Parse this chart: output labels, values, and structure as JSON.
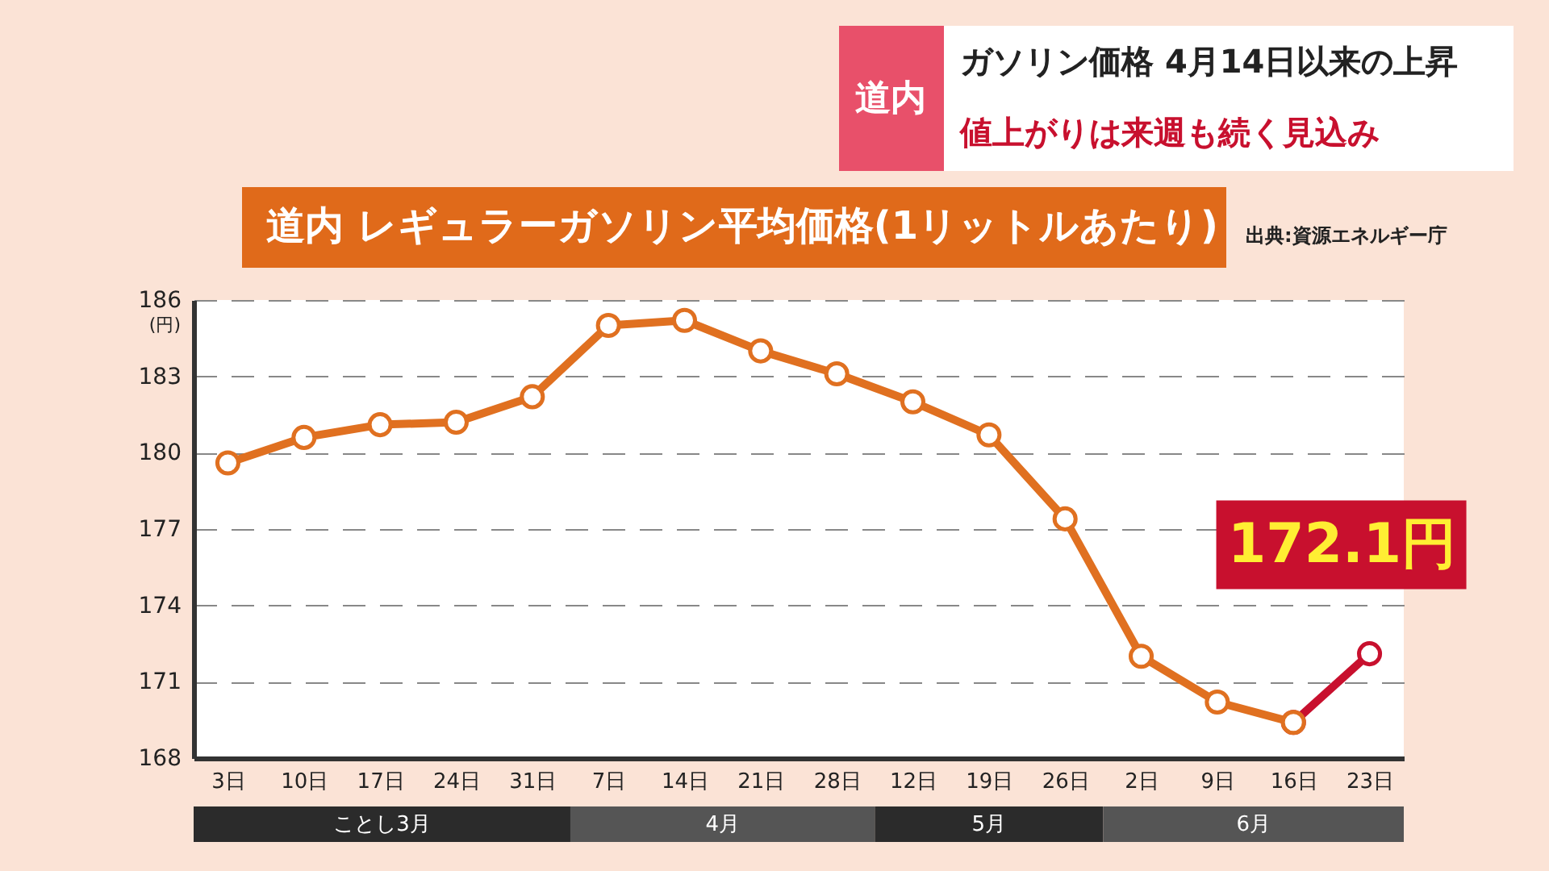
{
  "chart_data": {
    "type": "line",
    "title": "道内 レギュラーガソリン平均価格(1リットルあたり)",
    "subtitle": "ガソリン価格 4月14日以来の上昇",
    "ylabel": "(円)",
    "categories": [
      "3日",
      "10日",
      "17日",
      "24日",
      "31日",
      "7日",
      "14日",
      "21日",
      "28日",
      "12日",
      "19日",
      "26日",
      "2日",
      "9日",
      "16日",
      "23日"
    ],
    "series": [
      {
        "color": "#e07020",
        "values": [
          179.6,
          180.6,
          181.1,
          181.2,
          182.2,
          185.0,
          185.2,
          184.0,
          183.1,
          182.0,
          180.7,
          177.4,
          172.0,
          170.2,
          169.4,
          null
        ]
      },
      {
        "color": "#c8102e",
        "values": [
          null,
          null,
          null,
          null,
          null,
          null,
          null,
          null,
          null,
          null,
          null,
          null,
          null,
          null,
          169.4,
          172.1
        ],
        "value_labels": [
          null,
          null,
          null,
          null,
          null,
          null,
          null,
          null,
          null,
          null,
          null,
          null,
          null,
          null,
          null,
          "172.1円"
        ]
      }
    ],
    "ylim": [
      168,
      186
    ],
    "yticks": [
      168,
      171,
      174,
      177,
      180,
      183,
      186
    ],
    "grid": "y",
    "marker": "circle",
    "line_style": "solid",
    "annotations": [
      "出典:資源エネルギー庁",
      "ことし3月",
      "4月",
      "5月",
      "6月",
      "道内",
      "値上がりは来週も続く見込み"
    ]
  }
}
